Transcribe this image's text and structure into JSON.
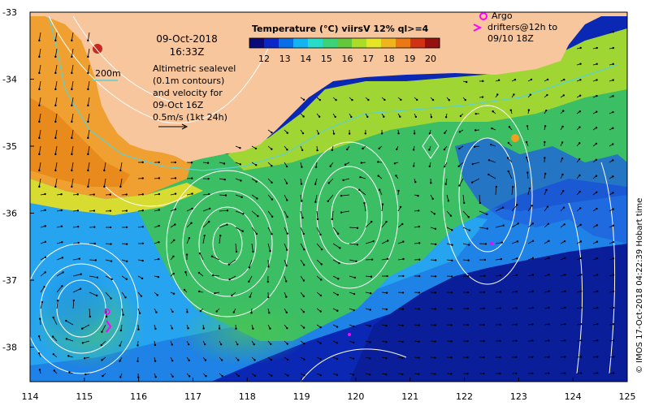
{
  "map": {
    "date": "09-Oct-2018",
    "time": "16:33Z",
    "altimetry_lines": [
      "Altimetric sealevel",
      "(0.1m contours)",
      "and velocity for",
      "09-Oct 16Z",
      "0.5m/s (1kt 24h)"
    ],
    "depth_contour_label": "200m",
    "colorbar": {
      "title": "Temperature (°C) viirsV 12% ql>=4",
      "tick_labels": [
        "12",
        "13",
        "14",
        "15",
        "16",
        "17",
        "18",
        "19",
        "20"
      ],
      "colors": [
        "#0a0a7a",
        "#0a28c8",
        "#0a6ee6",
        "#14b4f0",
        "#28dcc8",
        "#3cd278",
        "#64c83c",
        "#aadc28",
        "#e6e628",
        "#f0b41e",
        "#eb7814",
        "#d23214",
        "#961010"
      ]
    },
    "argo_legend": {
      "circle_label": "Argo",
      "arrow_label_lines": [
        "drifters@12h to",
        "09/10 18Z"
      ],
      "color": "#ff00ff"
    },
    "credit": "© IMOS 17-Oct-2018 04:22:39 Hobart time",
    "lon_labels": [
      "114",
      "115",
      "116",
      "117",
      "118",
      "119",
      "120",
      "121",
      "122",
      "123",
      "124",
      "125"
    ],
    "lat_labels": [
      "-33",
      "-34",
      "-35",
      "-36",
      "-37",
      "-38"
    ],
    "colors": {
      "land": "#f7c69c",
      "coastal_warm": "#f5a030",
      "warm_core": "#e88a1c",
      "mid_green": "#4cc854",
      "yellow_green": "#b4dc2c",
      "cyan": "#2cc8d8",
      "blue": "#1e78e6",
      "deep_blue": "#0a1e9a",
      "contour": "#ffffff",
      "arrow": "#000000",
      "isobath": "#5ad2d2"
    }
  }
}
